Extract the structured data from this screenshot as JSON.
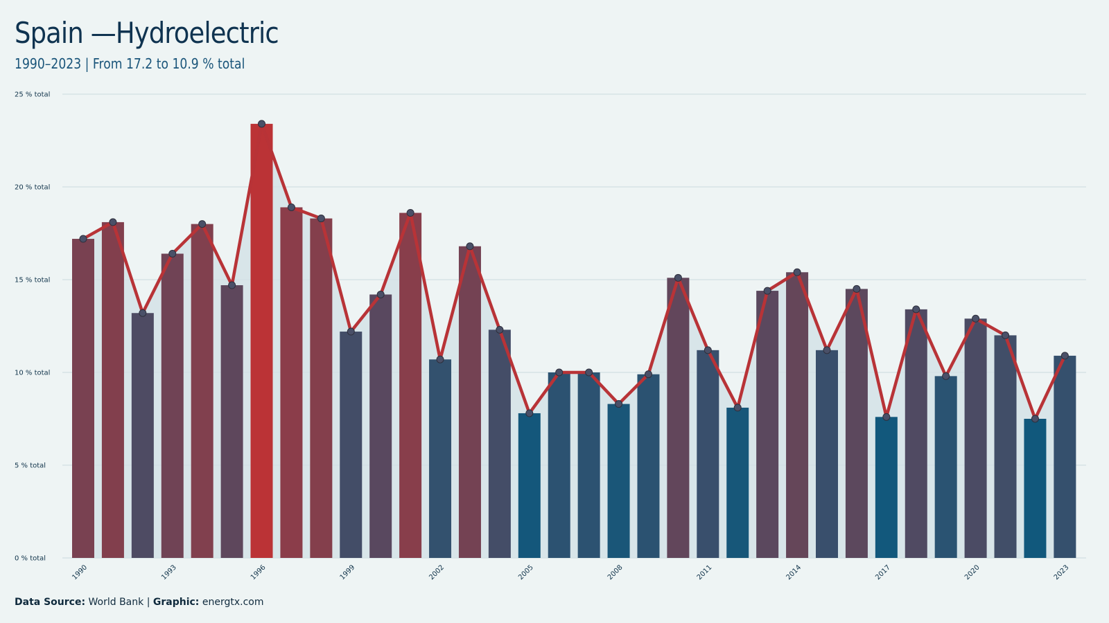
{
  "title": "Spain —Hydroelectric",
  "subtitle": "1990–2023 | From 17.2 to 10.9 % total",
  "footer": {
    "source_label": "Data Source:",
    "source_value": "World Bank",
    "separator": "|",
    "graphic_label": "Graphic:",
    "graphic_value": "energtx.com"
  },
  "colors": {
    "background": "#eef4f4",
    "line": "#b83337",
    "low": "#11587c",
    "high": "#bb3336",
    "marker_fill": "#4a5068",
    "area_fill": "#d3e2e6",
    "grid": "#d2dfe2"
  },
  "chart_data": {
    "type": "bar",
    "overlay": "line",
    "title": "Spain —Hydroelectric",
    "subtitle": "1990–2023 | From 17.2 to 10.9 % total",
    "xlabel": "",
    "ylabel": "",
    "unit": "% total",
    "ylim": [
      0,
      25
    ],
    "yticks": [
      0,
      5,
      10,
      15,
      20,
      25
    ],
    "ytick_labels": [
      "0 % total",
      "5 % total",
      "10 % total",
      "15 % total",
      "20 % total",
      "25 % total"
    ],
    "xtick_labels": [
      "1990",
      "1993",
      "1996",
      "1999",
      "2002",
      "2005",
      "2008",
      "2011",
      "2014",
      "2017",
      "2020",
      "2023"
    ],
    "grid": true,
    "legend": "none",
    "x": [
      1990,
      1991,
      1992,
      1993,
      1994,
      1995,
      1996,
      1997,
      1998,
      1999,
      2000,
      2001,
      2002,
      2003,
      2004,
      2005,
      2006,
      2007,
      2008,
      2009,
      2010,
      2011,
      2012,
      2013,
      2014,
      2015,
      2016,
      2017,
      2018,
      2019,
      2020,
      2021,
      2022,
      2023
    ],
    "values": [
      17.2,
      18.1,
      13.2,
      16.4,
      18.0,
      14.7,
      23.4,
      18.9,
      18.3,
      12.2,
      14.2,
      18.6,
      10.7,
      16.8,
      12.3,
      7.8,
      10.0,
      10.0,
      8.3,
      9.9,
      15.1,
      11.2,
      8.1,
      14.4,
      15.4,
      11.2,
      14.5,
      7.6,
      13.4,
      9.8,
      12.9,
      12.0,
      7.5,
      10.9
    ]
  }
}
